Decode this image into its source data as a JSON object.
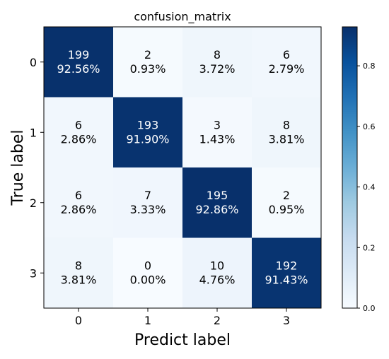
{
  "chart_data": {
    "type": "heatmap",
    "title": "confusion_matrix",
    "xlabel": "Predict label",
    "ylabel": "True label",
    "x_ticks": [
      "0",
      "1",
      "2",
      "3"
    ],
    "y_ticks": [
      "0",
      "1",
      "2",
      "3"
    ],
    "counts": [
      [
        199,
        2,
        8,
        6
      ],
      [
        6,
        193,
        3,
        8
      ],
      [
        6,
        7,
        195,
        2
      ],
      [
        8,
        0,
        10,
        192
      ]
    ],
    "percent_labels": [
      [
        "92.56%",
        "0.93%",
        "3.72%",
        "2.79%"
      ],
      [
        "2.86%",
        "91.90%",
        "1.43%",
        "3.81%"
      ],
      [
        "2.86%",
        "3.33%",
        "92.86%",
        "0.95%"
      ],
      [
        "3.81%",
        "0.00%",
        "4.76%",
        "91.43%"
      ]
    ],
    "colorbar": {
      "range": [
        0,
        0.9286
      ],
      "ticks": [
        "0.0",
        "0.2",
        "0.4",
        "0.6",
        "0.8"
      ],
      "tick_values": [
        0.0,
        0.2,
        0.4,
        0.6,
        0.8
      ]
    },
    "colormap": "Blues",
    "grid": false
  }
}
